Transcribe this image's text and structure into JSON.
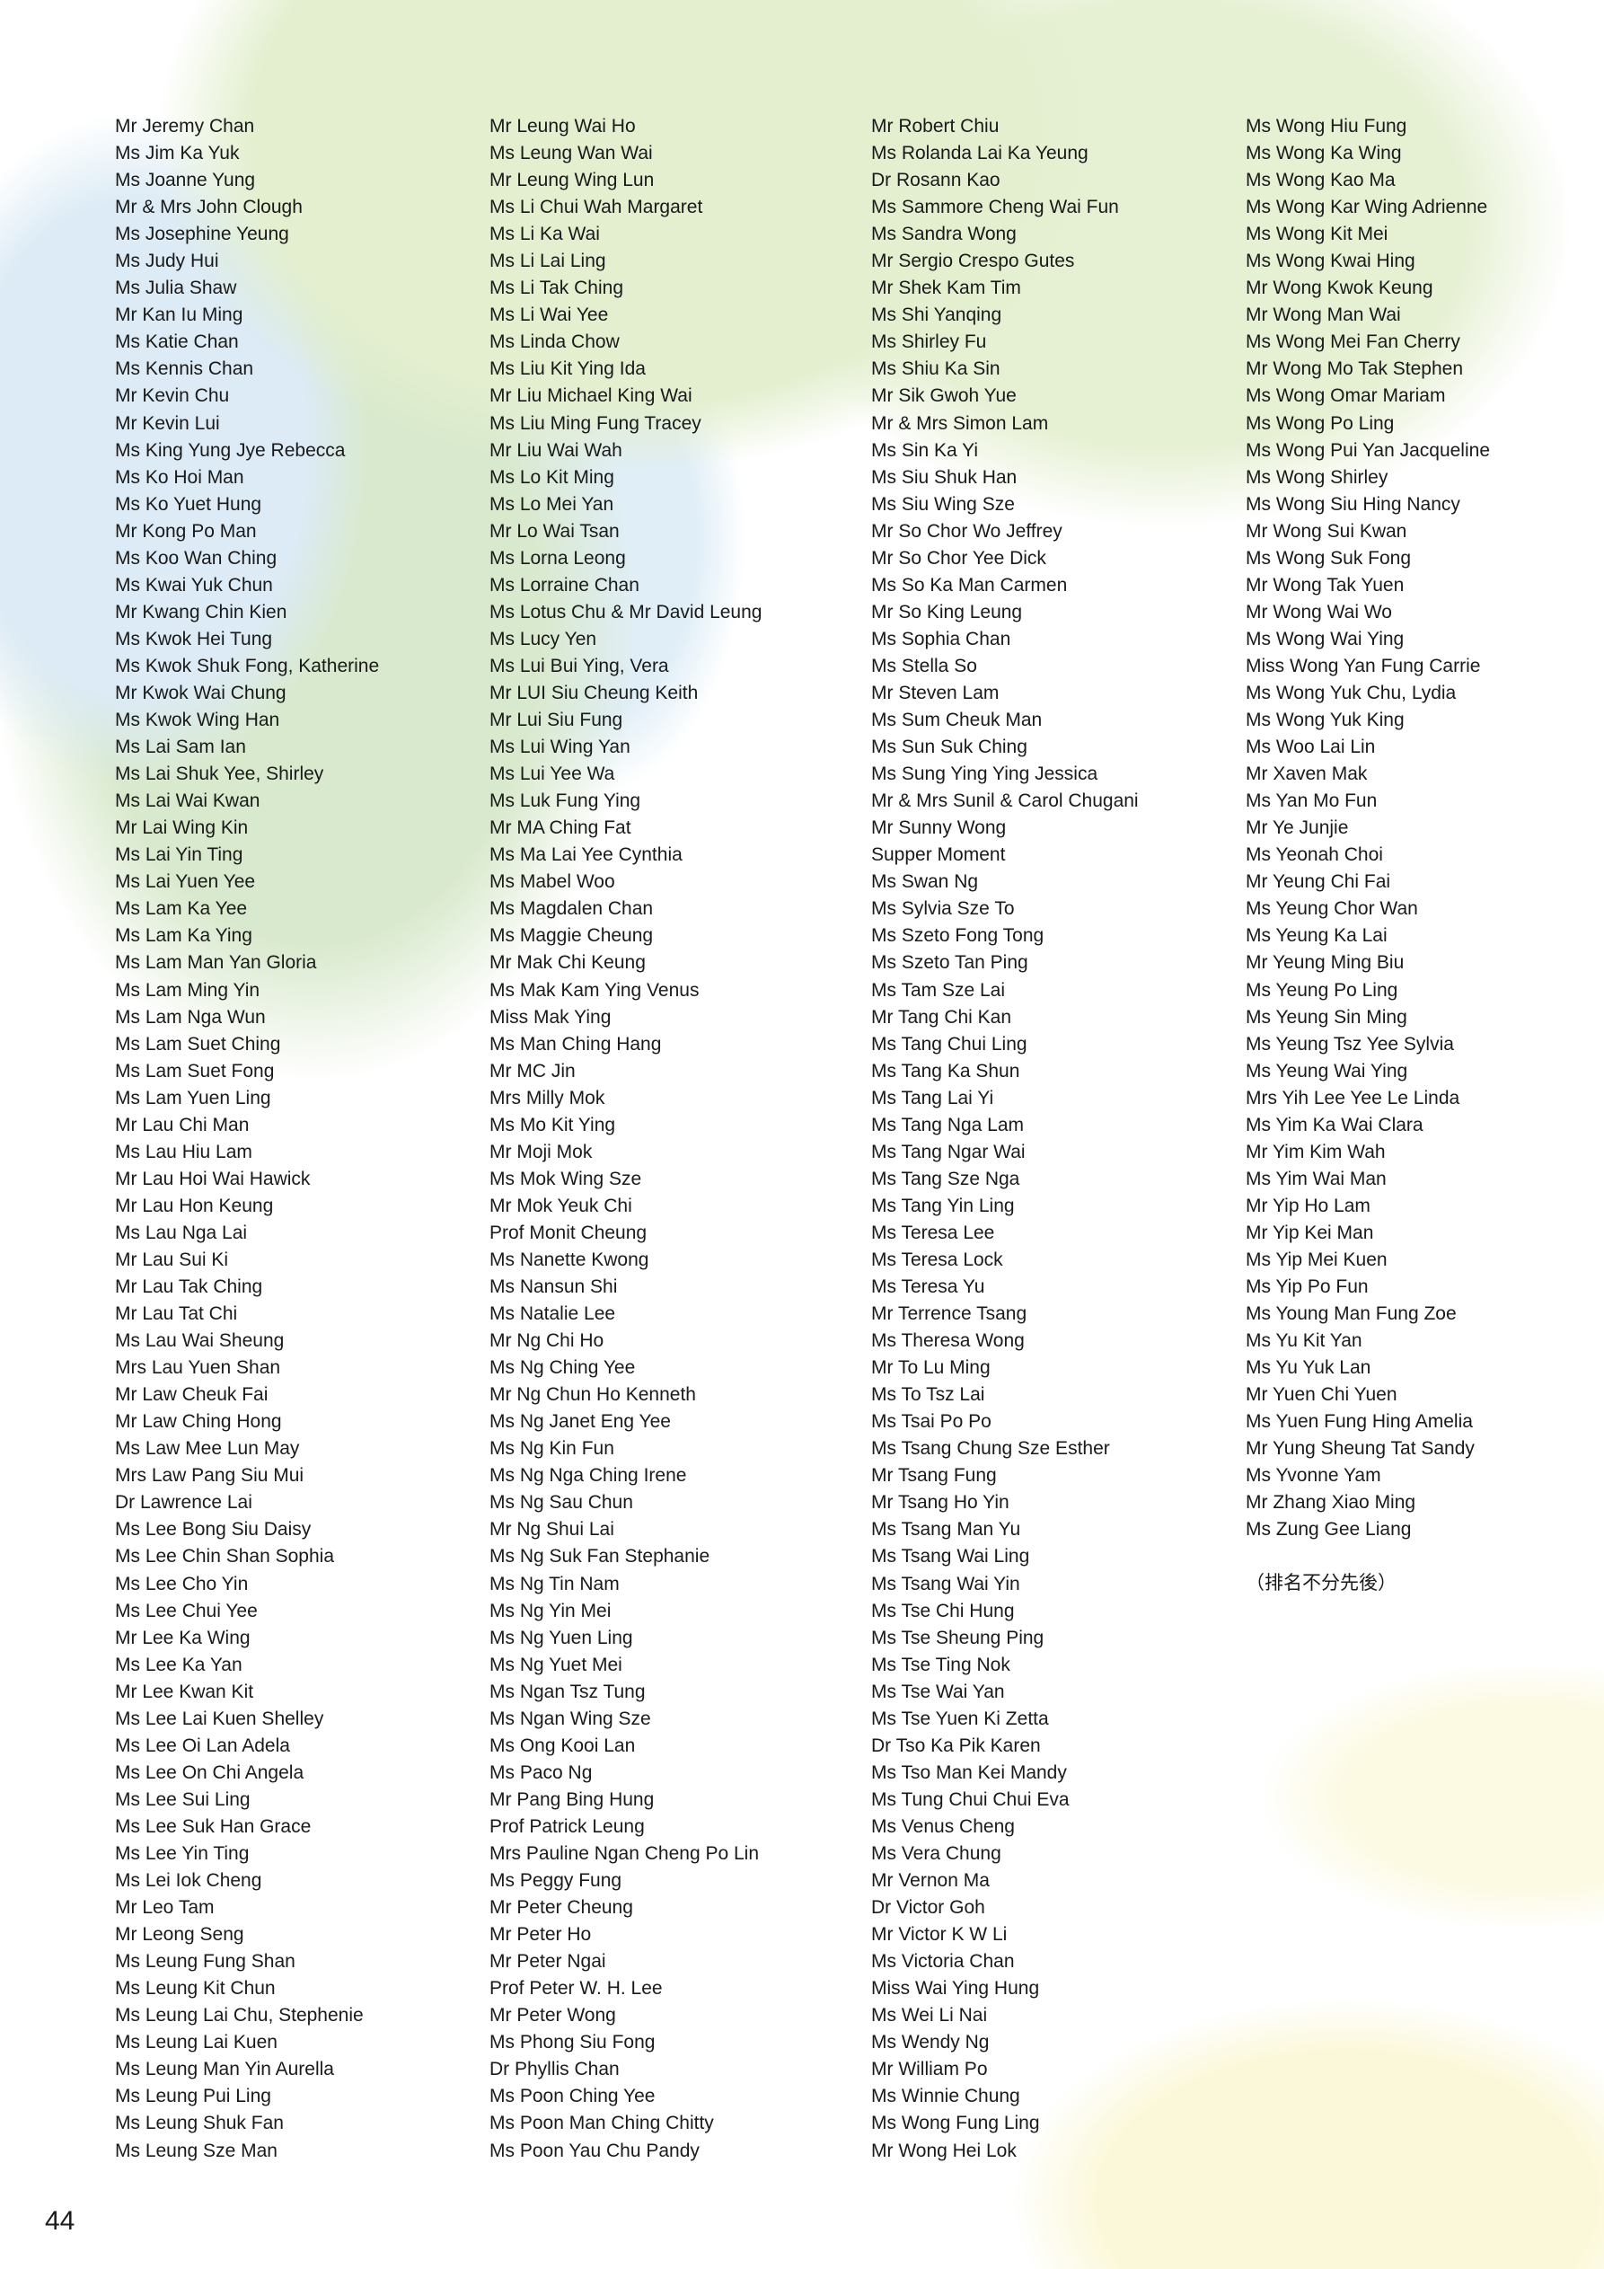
{
  "columns": [
    [
      "Mr Jeremy Chan",
      "Ms Jim Ka Yuk",
      "Ms Joanne Yung",
      "Mr & Mrs John Clough",
      "Ms Josephine Yeung",
      "Ms Judy Hui",
      "Ms Julia Shaw",
      "Mr Kan Iu Ming",
      "Ms Katie Chan",
      "Ms Kennis Chan",
      "Mr Kevin Chu",
      "Mr Kevin Lui",
      "Ms King Yung Jye Rebecca",
      "Ms Ko Hoi Man",
      "Ms Ko Yuet Hung",
      "Mr Kong Po Man",
      "Ms Koo Wan Ching",
      "Ms Kwai Yuk Chun",
      "Mr Kwang Chin Kien",
      "Ms Kwok Hei Tung",
      "Ms Kwok Shuk Fong, Katherine",
      "Mr Kwok Wai Chung",
      "Ms Kwok Wing Han",
      "Ms Lai Sam Ian",
      "Ms Lai Shuk Yee, Shirley",
      "Ms Lai Wai Kwan",
      "Mr Lai Wing Kin",
      "Ms Lai Yin Ting",
      "Ms Lai Yuen Yee",
      "Ms Lam Ka Yee",
      "Ms Lam Ka Ying",
      "Ms Lam Man Yan Gloria",
      "Ms Lam Ming Yin",
      "Ms Lam Nga Wun",
      "Ms Lam Suet Ching",
      "Ms Lam Suet Fong",
      "Ms Lam Yuen Ling",
      "Mr Lau Chi Man",
      "Ms Lau Hiu Lam",
      "Mr Lau Hoi Wai Hawick",
      "Mr Lau Hon Keung",
      "Ms Lau Nga Lai",
      "Mr Lau Sui Ki",
      "Mr Lau Tak Ching",
      "Mr Lau Tat Chi",
      "Ms Lau Wai Sheung",
      "Mrs Lau Yuen Shan",
      "Mr Law Cheuk Fai",
      "Mr Law Ching Hong",
      "Ms Law Mee Lun May",
      "Mrs Law Pang Siu Mui",
      "Dr Lawrence Lai",
      "Ms Lee Bong Siu Daisy",
      "Ms Lee Chin Shan Sophia",
      "Ms Lee Cho Yin",
      "Ms Lee Chui Yee",
      "Mr Lee Ka Wing",
      "Ms Lee Ka Yan",
      "Mr Lee Kwan Kit",
      "Ms Lee Lai Kuen Shelley",
      "Ms Lee Oi Lan Adela",
      "Ms Lee On Chi Angela",
      "Ms Lee Sui Ling",
      "Ms Lee Suk Han Grace",
      "Ms Lee Yin Ting",
      "Ms Lei Iok Cheng",
      "Mr Leo Tam",
      "Mr Leong Seng",
      "Ms Leung Fung Shan",
      "Ms Leung Kit Chun",
      "Ms Leung Lai Chu, Stephenie",
      "Ms Leung Lai Kuen",
      "Ms Leung Man Yin Aurella",
      "Ms Leung Pui Ling",
      "Ms Leung Shuk Fan",
      "Ms Leung Sze Man"
    ],
    [
      "Mr Leung Wai Ho",
      "Ms Leung Wan Wai",
      "Mr Leung Wing Lun",
      "Ms Li Chui Wah Margaret",
      "Ms Li Ka Wai",
      "Ms Li Lai Ling",
      "Ms Li Tak Ching",
      "Ms Li Wai Yee",
      "Ms Linda Chow",
      "Ms Liu Kit Ying Ida",
      "Mr Liu Michael King Wai",
      "Ms Liu Ming Fung Tracey",
      "Mr Liu Wai Wah",
      "Ms Lo Kit Ming",
      "Ms Lo Mei Yan",
      "Mr Lo Wai Tsan",
      "Ms Lorna Leong",
      "Ms Lorraine Chan",
      "Ms Lotus Chu & Mr David Leung",
      "Ms Lucy Yen",
      "Ms Lui Bui Ying, Vera",
      "Mr LUI Siu Cheung Keith",
      "Mr Lui Siu Fung",
      "Ms Lui Wing Yan",
      "Ms Lui Yee Wa",
      "Ms Luk Fung Ying",
      "Mr MA Ching Fat",
      "Ms Ma Lai Yee Cynthia",
      "Ms Mabel Woo",
      "Ms Magdalen Chan",
      "Ms Maggie Cheung",
      "Mr Mak Chi Keung",
      "Ms Mak Kam Ying Venus",
      "Miss Mak Ying",
      "Ms Man Ching Hang",
      "Mr MC Jin",
      "Mrs Milly Mok",
      "Ms Mo Kit Ying",
      "Mr Moji Mok",
      "Ms Mok Wing Sze",
      "Mr Mok Yeuk Chi",
      "Prof Monit Cheung",
      "Ms Nanette Kwong",
      "Ms Nansun Shi",
      "Ms Natalie Lee",
      "Mr Ng Chi Ho",
      "Ms Ng Ching Yee",
      "Mr Ng Chun Ho Kenneth",
      "Ms Ng Janet Eng Yee",
      "Ms Ng Kin Fun",
      "Ms Ng Nga Ching Irene",
      "Ms Ng Sau Chun",
      "Mr Ng Shui Lai",
      "Ms Ng Suk Fan Stephanie",
      "Ms Ng Tin Nam",
      "Ms Ng Yin Mei",
      "Ms Ng Yuen Ling",
      "Ms Ng Yuet Mei",
      "Ms Ngan Tsz Tung",
      "Ms Ngan Wing Sze",
      "Ms Ong Kooi Lan",
      "Ms Paco Ng",
      "Mr Pang Bing Hung",
      "Prof Patrick Leung",
      "Mrs Pauline Ngan Cheng Po Lin",
      "Ms Peggy Fung",
      "Mr Peter Cheung",
      "Mr Peter Ho",
      "Mr Peter Ngai",
      "Prof Peter W. H. Lee",
      "Mr Peter Wong",
      "Ms Phong Siu Fong",
      "Dr Phyllis Chan",
      "Ms Poon Ching Yee",
      "Ms Poon Man Ching Chitty",
      "Ms Poon Yau Chu Pandy"
    ],
    [
      "Mr Robert Chiu",
      "Ms Rolanda Lai Ka Yeung",
      "Dr Rosann Kao",
      "Ms Sammore Cheng Wai Fun",
      "Ms Sandra Wong",
      "Mr Sergio Crespo Gutes",
      "Mr Shek Kam Tim",
      "Ms Shi Yanqing",
      "Ms Shirley Fu",
      "Ms Shiu Ka Sin",
      "Mr Sik Gwoh Yue",
      "Mr & Mrs Simon Lam",
      "Ms Sin Ka Yi",
      "Ms Siu Shuk Han",
      "Ms Siu Wing Sze",
      "Mr So Chor Wo Jeffrey",
      "Mr So Chor Yee Dick",
      "Ms So Ka Man Carmen",
      "Mr So King Leung",
      "Ms Sophia Chan",
      "Ms Stella So",
      "Mr Steven Lam",
      "Ms Sum Cheuk Man",
      "Ms Sun Suk Ching",
      "Ms Sung Ying Ying Jessica",
      "Mr & Mrs Sunil & Carol Chugani",
      "Mr Sunny Wong",
      "Supper Moment",
      "Ms Swan Ng",
      "Ms Sylvia Sze To",
      "Ms Szeto Fong Tong",
      "Ms Szeto Tan Ping",
      "Ms Tam Sze Lai",
      "Mr Tang Chi Kan",
      "Ms Tang Chui Ling",
      "Ms Tang Ka Shun",
      "Ms Tang Lai Yi",
      "Ms Tang Nga Lam",
      "Ms Tang Ngar Wai",
      "Ms Tang Sze Nga",
      "Ms Tang Yin Ling",
      "Ms Teresa Lee",
      "Ms Teresa Lock",
      "Ms Teresa Yu",
      "Mr Terrence Tsang",
      "Ms Theresa Wong",
      "Mr To Lu Ming",
      "Ms To Tsz Lai",
      "Ms Tsai Po Po",
      "Ms Tsang Chung Sze Esther",
      "Mr Tsang Fung",
      "Mr Tsang Ho Yin",
      "Ms Tsang Man Yu",
      "Ms Tsang Wai Ling",
      "Ms Tsang Wai Yin",
      "Ms Tse Chi Hung",
      "Ms Tse Sheung Ping",
      "Ms Tse Ting Nok",
      "Ms Tse Wai Yan",
      "Ms Tse Yuen Ki Zetta",
      "Dr Tso Ka Pik Karen",
      "Ms Tso Man Kei Mandy",
      "Ms Tung Chui Chui Eva",
      "Ms Venus Cheng",
      "Ms Vera Chung",
      "Mr Vernon Ma",
      "Dr Victor Goh",
      "Mr Victor K W Li",
      "Ms Victoria Chan",
      "Miss Wai Ying Hung",
      "Ms Wei Li Nai",
      "Ms Wendy Ng",
      "Mr William Po",
      "Ms Winnie Chung",
      "Ms Wong Fung Ling",
      "Mr Wong Hei Lok"
    ],
    [
      "Ms Wong Hiu Fung",
      "Ms Wong Ka Wing",
      "Ms Wong Kao Ma",
      "Ms Wong Kar Wing Adrienne",
      "Ms Wong Kit Mei",
      "Ms Wong Kwai Hing",
      "Mr Wong Kwok Keung",
      "Mr Wong Man Wai",
      "Ms Wong Mei Fan Cherry",
      "Mr Wong Mo Tak Stephen",
      "Ms Wong Omar Mariam",
      "Ms Wong Po Ling",
      "Ms Wong Pui Yan Jacqueline",
      "Ms Wong Shirley",
      "Ms Wong Siu Hing Nancy",
      "Mr Wong Sui Kwan",
      "Ms Wong Suk Fong",
      "Mr Wong Tak Yuen",
      "Mr Wong Wai Wo",
      "Ms Wong Wai Ying",
      "Miss Wong Yan Fung Carrie",
      "Ms Wong Yuk Chu, Lydia",
      "Ms Wong Yuk King",
      "Ms Woo Lai Lin",
      "Mr Xaven Mak",
      "Ms Yan Mo Fun",
      "Mr Ye Junjie",
      "Ms Yeonah Choi",
      "Mr Yeung Chi Fai",
      "Ms Yeung Chor Wan",
      "Ms Yeung Ka Lai",
      "Mr Yeung Ming Biu",
      "Ms Yeung Po Ling",
      "Ms Yeung Sin Ming",
      "Ms Yeung Tsz Yee Sylvia",
      "Ms Yeung Wai Ying",
      "Mrs Yih Lee Yee Le Linda",
      "Ms Yim Ka Wai Clara",
      "Mr Yim Kim Wah",
      "Ms Yim Wai Man",
      "Mr Yip Ho Lam",
      "Mr Yip Kei Man",
      "Ms Yip Mei Kuen",
      "Ms Yip Po Fun",
      "Ms Young Man Fung Zoe",
      "Ms Yu Kit Yan",
      "Ms Yu Yuk Lan",
      "Mr Yuen Chi Yuen",
      "Ms Yuen Fung Hing Amelia",
      "Mr Yung Sheung Tat Sandy",
      "Ms Yvonne Yam",
      "Mr Zhang Xiao Ming",
      "Ms Zung Gee Liang"
    ]
  ],
  "note": "（排名不分先後）",
  "page_number": "44"
}
